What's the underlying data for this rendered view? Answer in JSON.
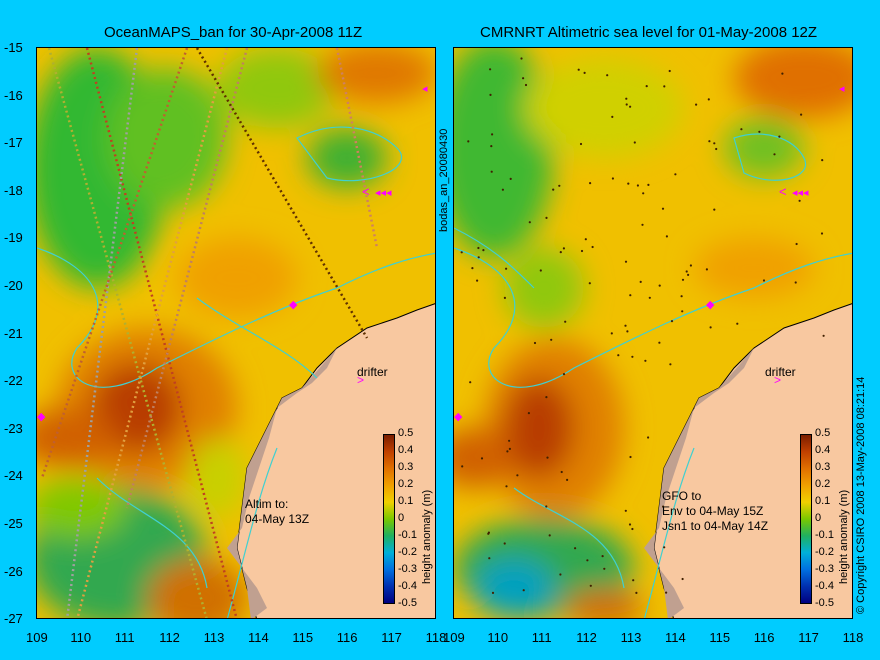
{
  "left_panel": {
    "title": "OceanMAPS_ban for 30-Apr-2008 11Z",
    "notes": [
      "Altim to:",
      "04-May 13Z"
    ],
    "drifter_label": "drifter"
  },
  "right_panel": {
    "title": "CMRNRT Altimetric sea level  for 01-May-2008 12Z",
    "notes": [
      "GFO to",
      "Env to 04-May 15Z",
      "Jsn1 to 04-May 14Z"
    ],
    "drifter_label": "drifter"
  },
  "axes": {
    "x_ticks": [
      "109",
      "110",
      "111",
      "112",
      "113",
      "114",
      "115",
      "116",
      "117",
      "118"
    ],
    "y_ticks": [
      "-15",
      "-16",
      "-17",
      "-18",
      "-19",
      "-20",
      "-21",
      "-22",
      "-23",
      "-24",
      "-25",
      "-26",
      "-27"
    ]
  },
  "colorbar": {
    "label": "height anomaly (m)",
    "ticks": [
      "0.5",
      "0.4",
      "0.3",
      "0.2",
      "0.1",
      "0",
      "-0.1",
      "-0.2",
      "-0.3",
      "-0.4",
      "-0.5"
    ],
    "colors": {
      "high": "#7a1e00",
      "mid_high": "#e8a200",
      "zero": "#7ac800",
      "mid_low": "#00b0d8",
      "low": "#000080"
    }
  },
  "side_label": "bodas_an_20080430",
  "copyright": "© Copyright CSIRO 2008  13-May-2008 08:21:14",
  "colors": {
    "land": "#f8c8a0",
    "coast_shelf": "#c0a090",
    "contour": "#40d0d0",
    "marker": "#ff00ff"
  }
}
